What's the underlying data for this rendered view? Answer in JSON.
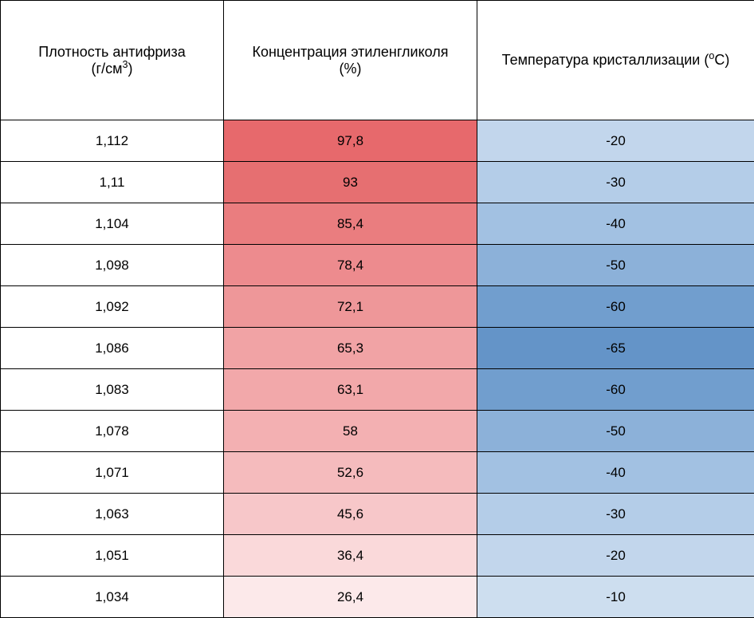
{
  "table": {
    "columns": [
      {
        "label": "Плотность антифриза",
        "unit_html": "(г/см<sup>3</sup>)"
      },
      {
        "label": "Концентрация этиленгликоля",
        "unit_html": "(%)"
      },
      {
        "label": "Температура кристаллизации (<sup>о</sup>С)",
        "unit_html": ""
      }
    ],
    "column_widths": [
      "280px",
      "318px",
      "348px"
    ],
    "header_fontsize": 18,
    "cell_fontsize": 17,
    "border_color": "#000000",
    "background_color": "#ffffff",
    "rows": [
      {
        "density": "1,112",
        "conc": "97,8",
        "temp": "-20",
        "conc_color": "#e7696c",
        "temp_color": "#c2d6ec"
      },
      {
        "density": "1,11",
        "conc": "93",
        "temp": "-30",
        "conc_color": "#e66f71",
        "temp_color": "#b4cde8"
      },
      {
        "density": "1,104",
        "conc": "85,4",
        "temp": "-40",
        "conc_color": "#ea7d7f",
        "temp_color": "#a2c1e2"
      },
      {
        "density": "1,098",
        "conc": "78,4",
        "temp": "-50",
        "conc_color": "#ed8b8e",
        "temp_color": "#8cb1d9"
      },
      {
        "density": "1,092",
        "conc": "72,1",
        "temp": "-60",
        "conc_color": "#ee9799",
        "temp_color": "#719ece"
      },
      {
        "density": "1,086",
        "conc": "65,3",
        "temp": "-65",
        "conc_color": "#f1a3a5",
        "temp_color": "#6494c8"
      },
      {
        "density": "1,083",
        "conc": "63,1",
        "temp": "-60",
        "conc_color": "#f2a8aa",
        "temp_color": "#719ece"
      },
      {
        "density": "1,078",
        "conc": "58",
        "temp": "-50",
        "conc_color": "#f3b0b2",
        "temp_color": "#8cb1d9"
      },
      {
        "density": "1,071",
        "conc": "52,6",
        "temp": "-40",
        "conc_color": "#f5bbbd",
        "temp_color": "#a2c1e2"
      },
      {
        "density": "1,063",
        "conc": "45,6",
        "temp": "-30",
        "conc_color": "#f7c7c9",
        "temp_color": "#b4cde8"
      },
      {
        "density": "1,051",
        "conc": "36,4",
        "temp": "-20",
        "conc_color": "#fad9da",
        "temp_color": "#c2d6ec"
      },
      {
        "density": "1,034",
        "conc": "26,4",
        "temp": "-10",
        "conc_color": "#fce9ea",
        "temp_color": "#cddeef"
      }
    ]
  }
}
